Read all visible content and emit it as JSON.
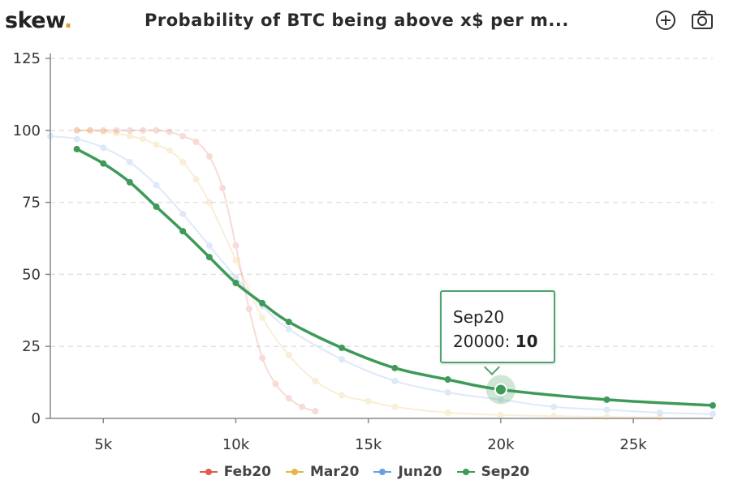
{
  "header": {
    "logo_text": "skew",
    "logo_dot": ".",
    "title": "Probability of BTC being above x$ per m...",
    "zoom_icon": "plus-circle-icon",
    "export_icon": "camera-icon"
  },
  "tooltip": {
    "series": "Sep20",
    "x_label": "20000:",
    "value": "10"
  },
  "chart_data": {
    "type": "line",
    "title": "Probability of BTC being above x$ per m...",
    "xlim": [
      3000,
      28000
    ],
    "ylim": [
      0,
      125
    ],
    "x_ticks": [
      5000,
      10000,
      15000,
      20000,
      25000
    ],
    "x_tick_labels": [
      "5k",
      "10k",
      "15k",
      "20k",
      "25k"
    ],
    "y_ticks": [
      0,
      25,
      50,
      75,
      100,
      125
    ],
    "y_tick_labels": [
      "0",
      "25",
      "50",
      "75",
      "100",
      "125"
    ],
    "grid": "horizontal dashed",
    "legend_position": "bottom",
    "highlight": {
      "series": "Sep20",
      "x": 20000,
      "y": 10
    },
    "series": [
      {
        "name": "Feb20",
        "color": "#e05a4f",
        "faded": true,
        "x": [
          4000,
          4500,
          5000,
          5500,
          6000,
          6500,
          7000,
          7500,
          8000,
          8500,
          9000,
          9500,
          10000,
          10500,
          11000,
          11500,
          12000,
          12500,
          13000
        ],
        "y": [
          100,
          100,
          100,
          100,
          100,
          100,
          100,
          99.5,
          98,
          96,
          91,
          80,
          60,
          38,
          21,
          12,
          7,
          4,
          2.5
        ]
      },
      {
        "name": "Mar20",
        "color": "#e8b448",
        "faded": true,
        "x": [
          4000,
          4500,
          5000,
          5500,
          6000,
          6500,
          7000,
          7500,
          8000,
          8500,
          9000,
          10000,
          11000,
          12000,
          13000,
          14000,
          15000,
          16000,
          18000,
          20000,
          22000,
          24000,
          26000
        ],
        "y": [
          100,
          100,
          99.5,
          99,
          98,
          97,
          95,
          93,
          89,
          83,
          75,
          55,
          35,
          22,
          13,
          8,
          6,
          4,
          2,
          1.2,
          0.8,
          0.5,
          0.3
        ]
      },
      {
        "name": "Jun20",
        "color": "#6a9fe6",
        "faded": true,
        "x": [
          3000,
          4000,
          5000,
          6000,
          7000,
          8000,
          9000,
          10000,
          11000,
          12000,
          14000,
          16000,
          18000,
          20000,
          22000,
          24000,
          26000,
          28000
        ],
        "y": [
          98,
          97,
          94,
          89,
          81,
          71,
          60,
          49,
          39,
          31,
          20.5,
          13,
          9,
          6.5,
          4,
          3,
          2,
          1.5
        ]
      },
      {
        "name": "Sep20",
        "color": "#3e9a58",
        "faded": false,
        "x": [
          4000,
          5000,
          6000,
          7000,
          8000,
          9000,
          10000,
          11000,
          12000,
          14000,
          16000,
          18000,
          20000,
          24000,
          28000
        ],
        "y": [
          93.5,
          88.5,
          82,
          73.5,
          65,
          56,
          47,
          40,
          33.5,
          24.5,
          17.5,
          13.5,
          10,
          6.5,
          4.5
        ]
      }
    ]
  }
}
